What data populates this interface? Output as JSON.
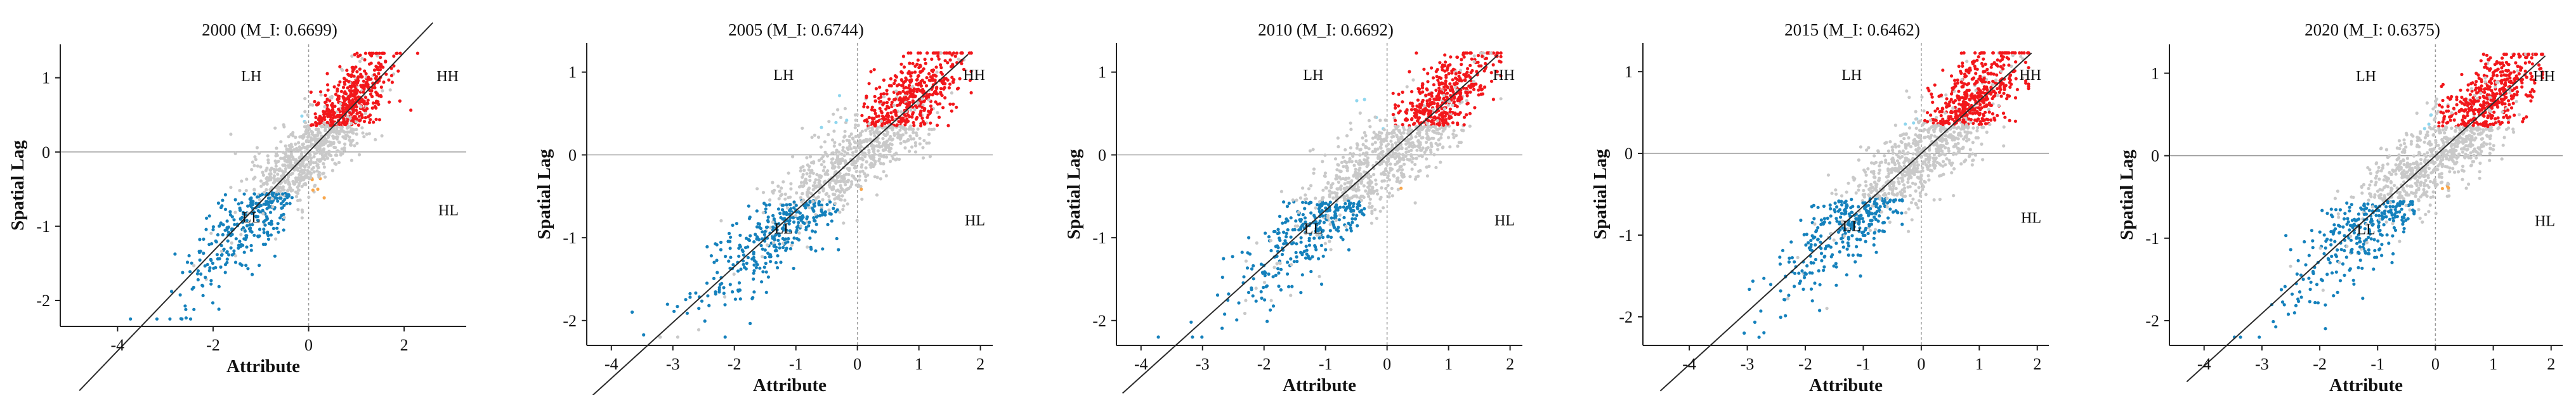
{
  "colors": {
    "HH": "#f2171b",
    "LL": "#1581bc",
    "LH": "#8fd6ee",
    "HL": "#f8a64b",
    "NS": "#c9c9c9",
    "fit": "#2b2b2b"
  },
  "chart_data": [
    {
      "type": "scatter",
      "title": "2000   (M_I: 0.6699)",
      "year": "2000",
      "moran_i": 0.6699,
      "xlabel": "Attribute",
      "ylabel": "Spatial Lag",
      "xlim": [
        -5.2,
        3.3
      ],
      "ylim": [
        -2.35,
        1.45
      ],
      "xticks": [
        -4,
        -2,
        0,
        2
      ],
      "yticks": [
        -2,
        -1,
        0,
        1
      ],
      "x_tick_labels": [
        "-4",
        "-2",
        "0",
        "2"
      ],
      "y_tick_labels": [
        "-2",
        "-1",
        "0",
        "1"
      ],
      "quadrant_labels": [
        "HH",
        "LH",
        "LL",
        "HL"
      ],
      "slope": 0.6699,
      "fit_x_range": [
        -4.8,
        2.6
      ],
      "legend": "none",
      "grid": false
    },
    {
      "type": "scatter",
      "title": "2005   (M_I: 0.6744)",
      "year": "2005",
      "moran_i": 0.6744,
      "xlabel": "Attribute",
      "ylabel": "Spatial Lag",
      "xlim": [
        -4.4,
        2.2
      ],
      "ylim": [
        -2.3,
        1.35
      ],
      "xticks": [
        -4,
        -3,
        -2,
        -1,
        0,
        1,
        2
      ],
      "yticks": [
        -2,
        -1,
        0,
        1
      ],
      "x_tick_labels": [
        "-4",
        "-3",
        "-2",
        "-1",
        "0",
        "1",
        "2"
      ],
      "y_tick_labels": [
        "-2",
        "-1",
        "0",
        "1"
      ],
      "quadrant_labels": [
        "HH",
        "LH",
        "LL",
        "HL"
      ],
      "slope": 0.6744,
      "fit_x_range": [
        -4.3,
        1.8
      ],
      "legend": "none",
      "grid": false
    },
    {
      "type": "scatter",
      "title": "2010   (M_I: 0.6692)",
      "year": "2010",
      "moran_i": 0.6692,
      "xlabel": "Attribute",
      "ylabel": "Spatial Lag",
      "xlim": [
        -4.4,
        2.2
      ],
      "ylim": [
        -2.3,
        1.35
      ],
      "xticks": [
        -4,
        -3,
        -2,
        -1,
        0,
        1,
        2
      ],
      "yticks": [
        -2,
        -1,
        0,
        1
      ],
      "x_tick_labels": [
        "-4",
        "-3",
        "-2",
        "-1",
        "0",
        "1",
        "2"
      ],
      "y_tick_labels": [
        "-2",
        "-1",
        "0",
        "1"
      ],
      "quadrant_labels": [
        "HH",
        "LH",
        "LL",
        "HL"
      ],
      "slope": 0.6692,
      "fit_x_range": [
        -4.3,
        1.8
      ],
      "legend": "none",
      "grid": false
    },
    {
      "type": "scatter",
      "title": "2015   (M_I: 0.6462)",
      "year": "2015",
      "moran_i": 0.6462,
      "xlabel": "Attribute",
      "ylabel": "Spatial Lag",
      "xlim": [
        -4.8,
        2.2
      ],
      "ylim": [
        -2.35,
        1.35
      ],
      "xticks": [
        -4,
        -3,
        -2,
        -1,
        0,
        1,
        2
      ],
      "yticks": [
        -2,
        -1,
        0,
        1
      ],
      "x_tick_labels": [
        "-4",
        "-3",
        "-2",
        "-1",
        "0",
        "1",
        "2"
      ],
      "y_tick_labels": [
        "-2",
        "-1",
        "0",
        "1"
      ],
      "quadrant_labels": [
        "HH",
        "LH",
        "LL",
        "HL"
      ],
      "slope": 0.6462,
      "fit_x_range": [
        -4.5,
        1.9
      ],
      "legend": "none",
      "grid": false
    },
    {
      "type": "scatter",
      "title": "2020   (M_I: 0.6375)",
      "year": "2020",
      "moran_i": 0.6375,
      "xlabel": "Attribute",
      "ylabel": "Spatial Lag",
      "xlim": [
        -4.6,
        2.2
      ],
      "ylim": [
        -2.3,
        1.35
      ],
      "xticks": [
        -4,
        -3,
        -2,
        -1,
        0,
        1,
        2
      ],
      "yticks": [
        -2,
        -1,
        0,
        1
      ],
      "x_tick_labels": [
        "-4",
        "-3",
        "-2",
        "-1",
        "0",
        "1",
        "2"
      ],
      "y_tick_labels": [
        "-2",
        "-1",
        "0",
        "1"
      ],
      "quadrant_labels": [
        "HH",
        "LH",
        "LL",
        "HL"
      ],
      "slope": 0.6375,
      "fit_x_range": [
        -4.3,
        1.9
      ],
      "legend": "none",
      "grid": false
    }
  ]
}
